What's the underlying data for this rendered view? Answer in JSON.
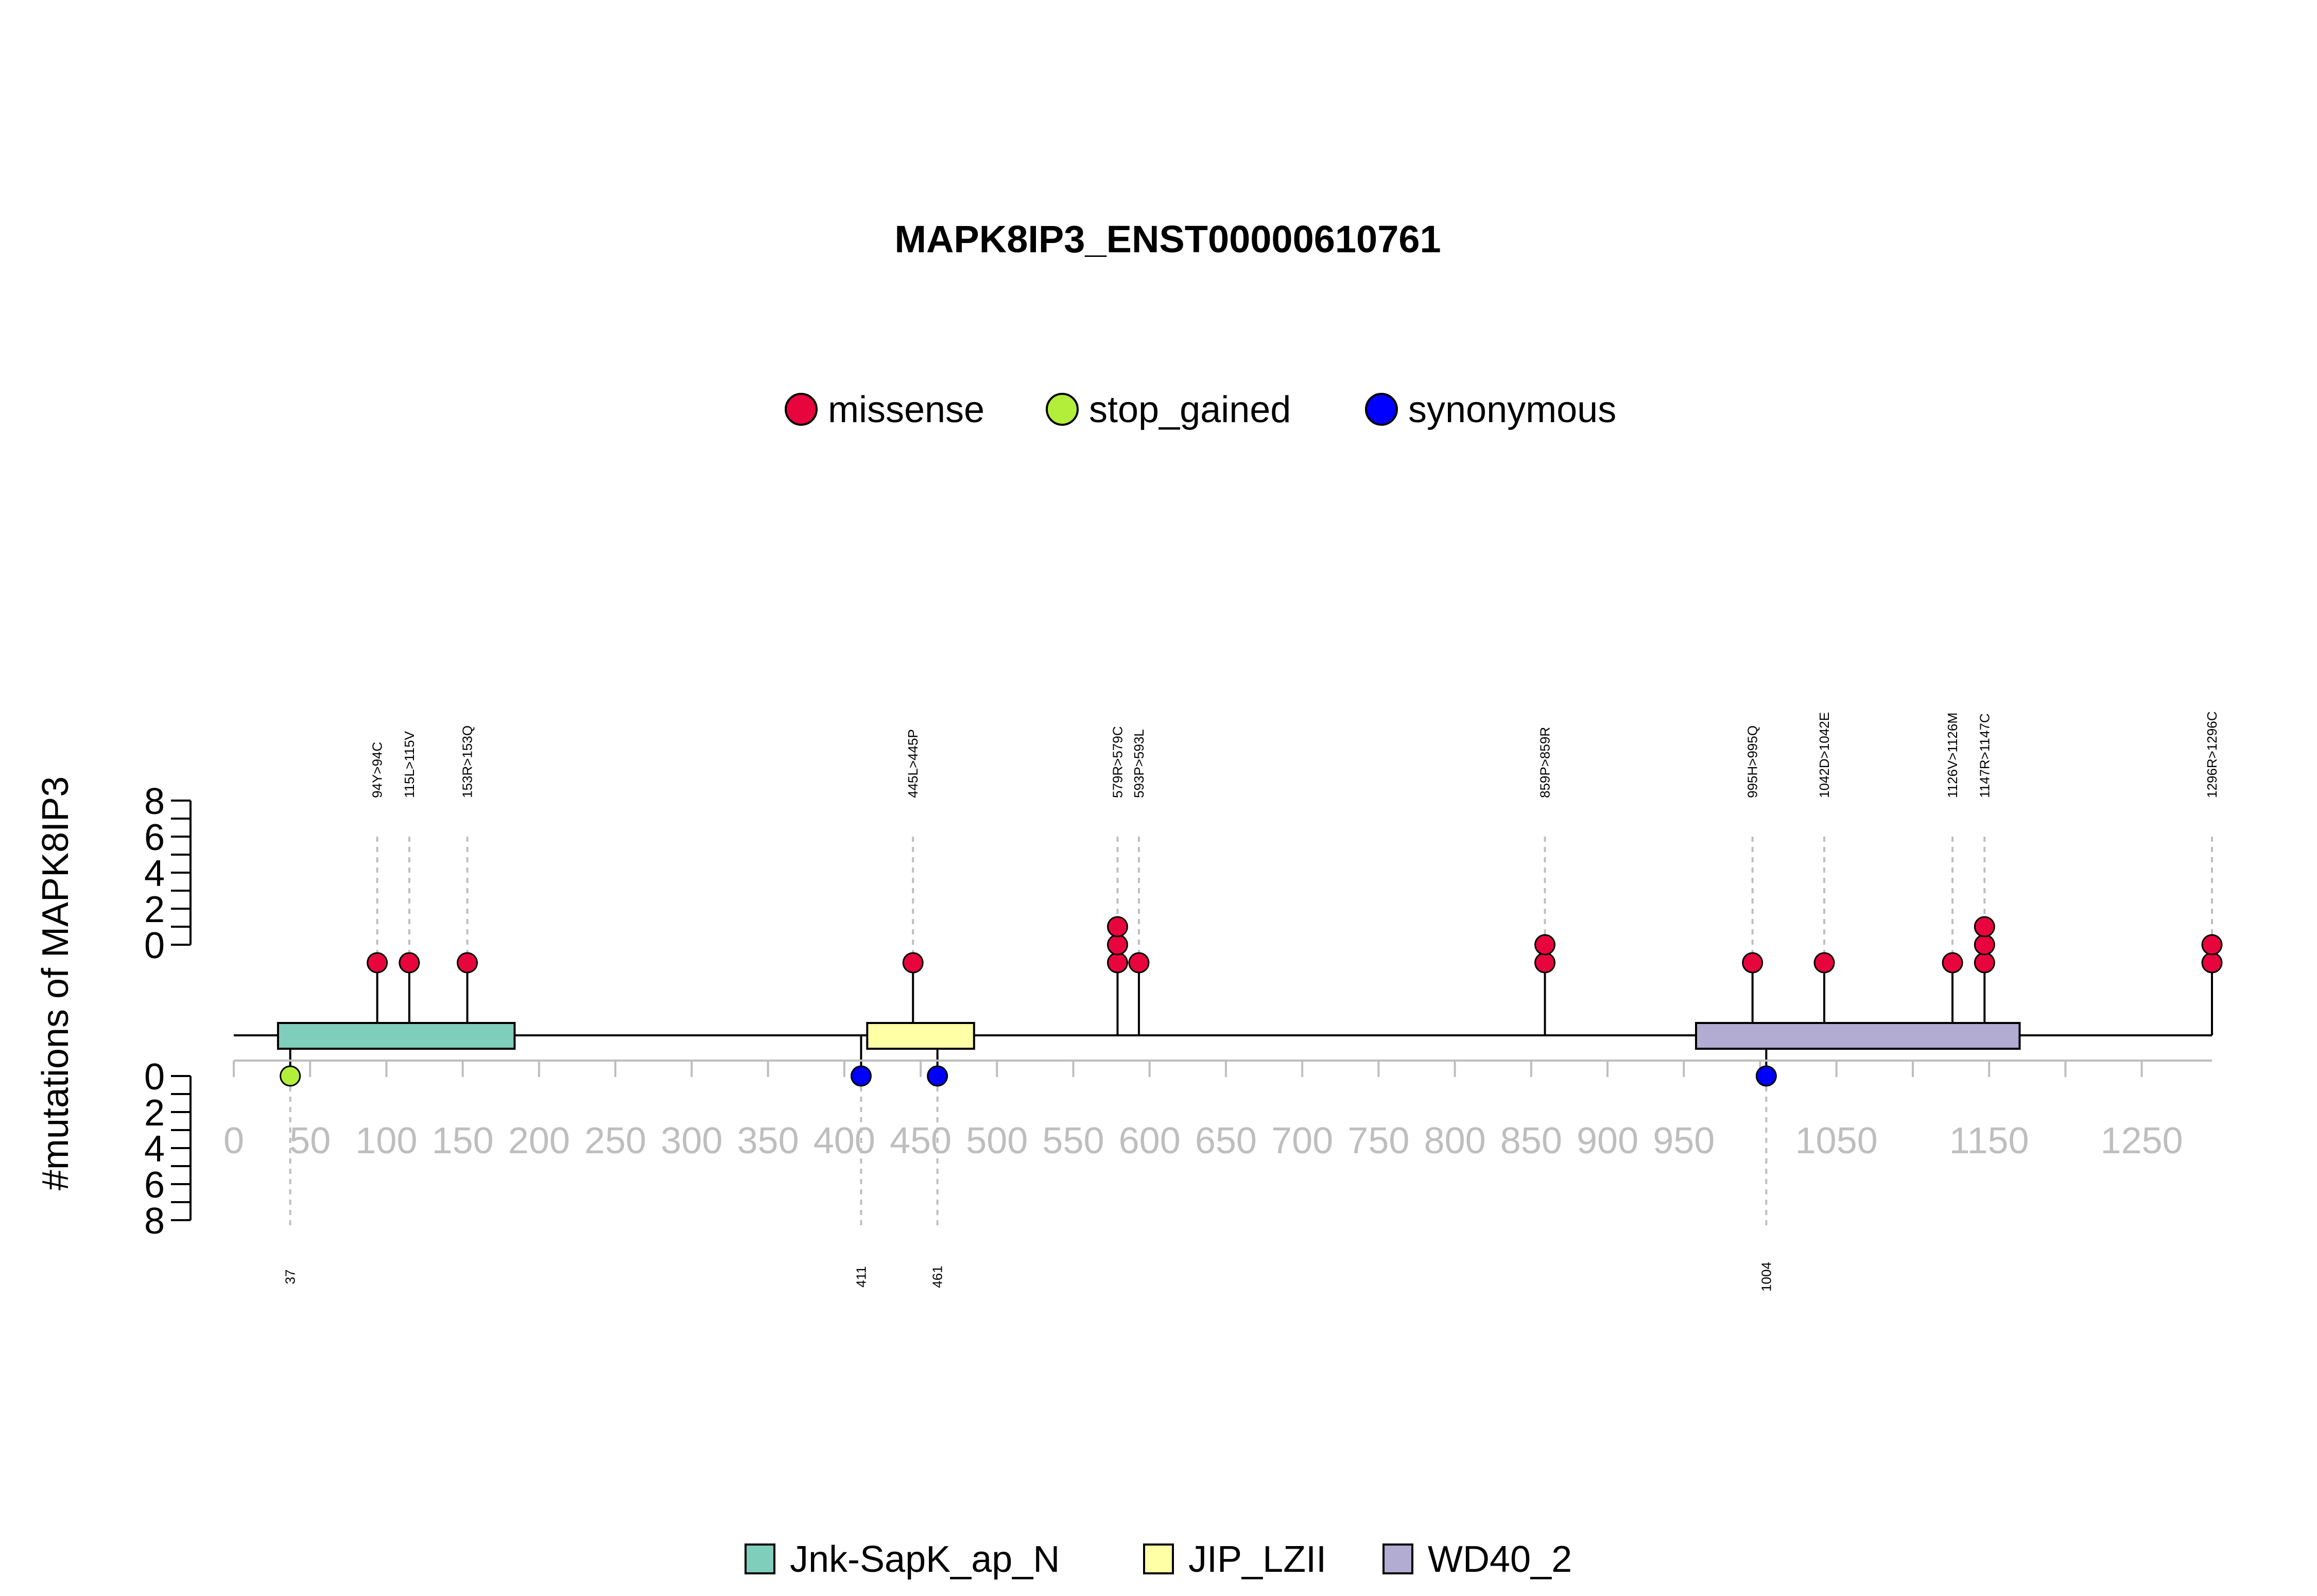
{
  "chart_data": {
    "type": "lollipop",
    "title": "MAPK8IP3_ENST00000610761",
    "ylabel": "#mutations of MAPK8IP3",
    "protein_length": 1296,
    "x_ticks": [
      0,
      50,
      100,
      150,
      200,
      250,
      300,
      350,
      400,
      450,
      500,
      550,
      600,
      650,
      700,
      750,
      800,
      850,
      900,
      950,
      1050,
      1150,
      1250
    ],
    "y_ticks": [
      0,
      2,
      4,
      6,
      8
    ],
    "ylim_top": [
      0,
      8
    ],
    "ylim_bottom": [
      0,
      8
    ],
    "legend_top": [
      {
        "name": "missense",
        "color": "#E8053D"
      },
      {
        "name": "stop_gained",
        "color": "#B3EE3A"
      },
      {
        "name": "synonymous",
        "color": "#0000FF"
      }
    ],
    "legend_domains": [
      {
        "name": "Jnk-SapK_ap_N",
        "color": "#7FCDBB"
      },
      {
        "name": "JIP_LZII",
        "color": "#FFFFA6"
      },
      {
        "name": "WD40_2",
        "color": "#B2ABD2"
      }
    ],
    "domains": [
      {
        "name": "Jnk-SapK_ap_N",
        "start": 29,
        "end": 184,
        "color": "#7FCDBB"
      },
      {
        "name": "JIP_LZII",
        "start": 415,
        "end": 485,
        "color": "#FFFFA6"
      },
      {
        "name": "WD40_2",
        "start": 958,
        "end": 1170,
        "color": "#B2ABD2"
      }
    ],
    "mutations_top": [
      {
        "pos": 94,
        "label": "94Y>94C",
        "count": 1,
        "type": "missense"
      },
      {
        "pos": 115,
        "label": "115L>115V",
        "count": 1,
        "type": "missense"
      },
      {
        "pos": 153,
        "label": "153R>153Q",
        "count": 1,
        "type": "missense"
      },
      {
        "pos": 445,
        "label": "445L>445P",
        "count": 1,
        "type": "missense"
      },
      {
        "pos": 579,
        "label": "579R>579C",
        "count": 3,
        "type": "missense"
      },
      {
        "pos": 593,
        "label": "593P>593L",
        "count": 1,
        "type": "missense"
      },
      {
        "pos": 859,
        "label": "859P>859R",
        "count": 2,
        "type": "missense"
      },
      {
        "pos": 995,
        "label": "995H>995Q",
        "count": 1,
        "type": "missense"
      },
      {
        "pos": 1042,
        "label": "1042D>1042E",
        "count": 1,
        "type": "missense"
      },
      {
        "pos": 1126,
        "label": "1126V>1126M",
        "count": 1,
        "type": "missense"
      },
      {
        "pos": 1147,
        "label": "1147R>1147C",
        "count": 3,
        "type": "missense"
      },
      {
        "pos": 1296,
        "label": "1296R>1296C",
        "count": 2,
        "type": "missense"
      }
    ],
    "mutations_bottom": [
      {
        "pos": 37,
        "label": "37",
        "count": 1,
        "type": "stop_gained"
      },
      {
        "pos": 411,
        "label": "411",
        "count": 1,
        "type": "synonymous"
      },
      {
        "pos": 461,
        "label": "461",
        "count": 1,
        "type": "synonymous"
      },
      {
        "pos": 1004,
        "label": "1004",
        "count": 1,
        "type": "synonymous"
      }
    ]
  }
}
